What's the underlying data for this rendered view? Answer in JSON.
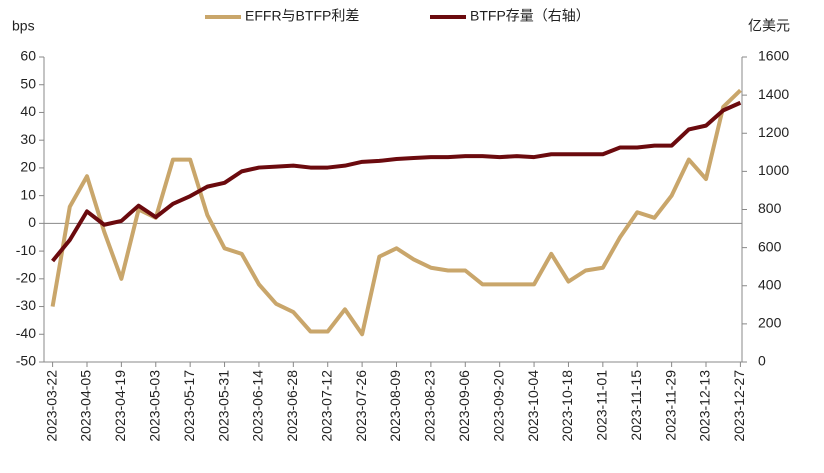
{
  "chart_data": {
    "type": "line",
    "legend": "top",
    "y_label": "bps",
    "y2_label": "亿美元",
    "categories": [
      "2023-03-22",
      null,
      "2023-04-05",
      null,
      "2023-04-19",
      null,
      "2023-05-03",
      null,
      "2023-05-17",
      null,
      "2023-05-31",
      null,
      "2023-06-14",
      null,
      "2023-06-28",
      null,
      "2023-07-12",
      null,
      "2023-07-26",
      null,
      "2023-08-09",
      null,
      "2023-08-23",
      null,
      "2023-09-06",
      null,
      "2023-09-20",
      null,
      "2023-10-04",
      null,
      "2023-10-18",
      null,
      "2023-11-01",
      null,
      "2023-11-15",
      null,
      "2023-11-29",
      null,
      "2023-12-13",
      null,
      "2023-12-27"
    ],
    "series": [
      {
        "name": "EFFR与BTFP利差",
        "color": "#c9a66b",
        "axis": "y",
        "values": [
          -30,
          6,
          17,
          -3,
          -20,
          5,
          2,
          23,
          23,
          3,
          -9,
          -11,
          -22,
          -29,
          -32,
          -39,
          -39,
          -31,
          -40,
          -12,
          -9,
          -13,
          -16,
          -17,
          -17,
          -22,
          -22,
          -22,
          -22,
          -11,
          -21,
          -17,
          -16,
          -5,
          4,
          2,
          10,
          23,
          16,
          42,
          48
        ]
      },
      {
        "name": "BTFP存量（右轴）",
        "color": "#6b0a0e",
        "axis": "y2",
        "values": [
          530,
          640,
          790,
          720,
          740,
          820,
          760,
          830,
          870,
          920,
          940,
          1000,
          1020,
          1025,
          1030,
          1020,
          1020,
          1030,
          1050,
          1055,
          1065,
          1070,
          1075,
          1075,
          1080,
          1080,
          1075,
          1080,
          1075,
          1090,
          1090,
          1090,
          1090,
          1125,
          1125,
          1135,
          1135,
          1220,
          1240,
          1320,
          1360
        ]
      }
    ],
    "ylim": [
      -50,
      60
    ],
    "yticks": [
      -50,
      -40,
      -30,
      -20,
      -10,
      0,
      10,
      20,
      30,
      40,
      50,
      60
    ],
    "y2lim": [
      0,
      1600
    ],
    "y2ticks": [
      0,
      200,
      400,
      600,
      800,
      1000,
      1200,
      1400,
      1600
    ]
  }
}
